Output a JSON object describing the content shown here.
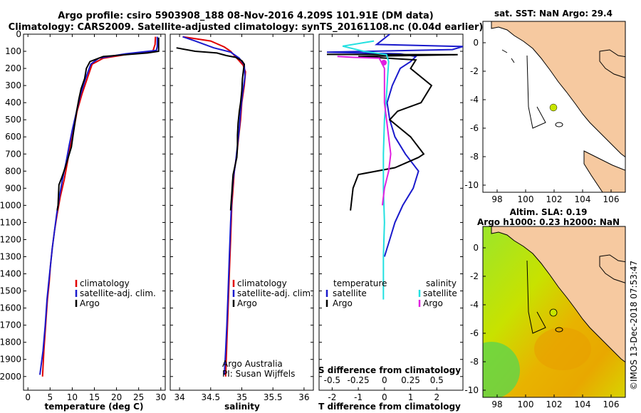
{
  "title": {
    "line1": "Argo profile: csiro 5903908_188 08-Nov-2016 4.209S 101.91E (DM data)",
    "line2": "Climatology: CARS2009. Satellite-adjusted climatology: synTS_20161108.nc (0.04d earlier)"
  },
  "colors": {
    "red": "#e00000",
    "blue": "#1a1acc",
    "black": "#000000",
    "cyan": "#22e0e0",
    "magenta": "#e020e0",
    "land": "#f6c9a0"
  },
  "chart_data": [
    {
      "type": "line",
      "name": "temperature",
      "xlabel": "temperature (deg C)",
      "ylabel": "depth",
      "xlim": [
        -1,
        31
      ],
      "ylim": [
        0,
        2080
      ],
      "xticks": [
        "0",
        "5",
        "10",
        "15",
        "20",
        "25",
        "30"
      ],
      "yticks": [
        "0",
        "100",
        "200",
        "300",
        "400",
        "500",
        "600",
        "700",
        "800",
        "900",
        "1000",
        "1100",
        "1200",
        "1300",
        "1400",
        "1500",
        "1600",
        "1700",
        "1800",
        "1900",
        "2000"
      ],
      "legend": [
        "climatology",
        "satellite-adj. clim.",
        "Argo"
      ],
      "series": [
        {
          "name": "climatology",
          "color": "red",
          "points": [
            [
              28.8,
              15
            ],
            [
              28.7,
              60
            ],
            [
              28.2,
              100
            ],
            [
              22,
              120
            ],
            [
              17,
              140
            ],
            [
              14.5,
              175
            ],
            [
              13.5,
              250
            ],
            [
              12.2,
              350
            ],
            [
              11.1,
              450
            ],
            [
              10.4,
              550
            ],
            [
              9.6,
              650
            ],
            [
              8.9,
              750
            ],
            [
              8.2,
              850
            ],
            [
              7.3,
              950
            ],
            [
              6.6,
              1050
            ],
            [
              6,
              1150
            ],
            [
              5.5,
              1250
            ],
            [
              5.1,
              1350
            ],
            [
              4.8,
              1450
            ],
            [
              4.4,
              1550
            ],
            [
              4,
              1700
            ],
            [
              3.6,
              1850
            ],
            [
              3.3,
              2000
            ]
          ]
        },
        {
          "name": "satellite-adj. clim.",
          "color": "blue",
          "points": [
            [
              29.2,
              15
            ],
            [
              29.2,
              70
            ],
            [
              29,
              95
            ],
            [
              22,
              115
            ],
            [
              16,
              140
            ],
            [
              14.2,
              175
            ],
            [
              13,
              260
            ],
            [
              11.8,
              360
            ],
            [
              11,
              450
            ],
            [
              10.1,
              550
            ],
            [
              9.3,
              650
            ],
            [
              8.6,
              750
            ],
            [
              7.8,
              850
            ],
            [
              7.1,
              950
            ],
            [
              6.5,
              1050
            ],
            [
              6,
              1150
            ],
            [
              5.5,
              1250
            ],
            [
              5.1,
              1350
            ],
            [
              4.7,
              1450
            ],
            [
              4.3,
              1550
            ],
            [
              3.9,
              1700
            ],
            [
              3.4,
              1850
            ],
            [
              2.7,
              1990
            ]
          ]
        },
        {
          "name": "Argo",
          "color": "black",
          "points": [
            [
              29.5,
              20
            ],
            [
              29.5,
              100
            ],
            [
              27,
              110
            ],
            [
              17,
              130
            ],
            [
              14,
              160
            ],
            [
              13.2,
              200
            ],
            [
              12.8,
              260
            ],
            [
              12,
              320
            ],
            [
              11.5,
              380
            ],
            [
              11,
              450
            ],
            [
              10.6,
              520
            ],
            [
              10.2,
              590
            ],
            [
              9.8,
              660
            ],
            [
              9.1,
              720
            ],
            [
              8.4,
              780
            ],
            [
              7.6,
              840
            ],
            [
              7,
              880
            ],
            [
              6.9,
              940
            ],
            [
              6.8,
              1000
            ],
            [
              6.6,
              1030
            ]
          ]
        }
      ]
    },
    {
      "type": "line",
      "name": "salinity",
      "xlabel": "salinity",
      "ylabel": "depth",
      "xlim": [
        33.85,
        36.15
      ],
      "ylim": [
        0,
        2080
      ],
      "xticks": [
        "34",
        "34.5",
        "35",
        "35.5",
        "36"
      ],
      "legend": [
        "climatology",
        "satellite-adj. clim.",
        "Argo"
      ],
      "series": [
        {
          "name": "climatology",
          "color": "red",
          "points": [
            [
              34.05,
              15
            ],
            [
              34.5,
              40
            ],
            [
              34.72,
              75
            ],
            [
              34.82,
              100
            ],
            [
              34.92,
              140
            ],
            [
              35.02,
              180
            ],
            [
              35.06,
              220
            ],
            [
              35.04,
              300
            ],
            [
              35.0,
              400
            ],
            [
              34.98,
              500
            ],
            [
              34.95,
              600
            ],
            [
              34.92,
              700
            ],
            [
              34.88,
              800
            ],
            [
              34.86,
              900
            ],
            [
              34.84,
              1000
            ],
            [
              34.82,
              1200
            ],
            [
              34.8,
              1400
            ],
            [
              34.78,
              1600
            ],
            [
              34.76,
              1800
            ],
            [
              34.74,
              2000
            ]
          ]
        },
        {
          "name": "satellite-adj. clim.",
          "color": "blue",
          "points": [
            [
              34.05,
              15
            ],
            [
              34.25,
              40
            ],
            [
              34.55,
              80
            ],
            [
              34.82,
              105
            ],
            [
              34.96,
              140
            ],
            [
              35.04,
              180
            ],
            [
              35.05,
              250
            ],
            [
              35.01,
              350
            ],
            [
              34.98,
              450
            ],
            [
              34.96,
              550
            ],
            [
              34.93,
              650
            ],
            [
              34.9,
              750
            ],
            [
              34.86,
              850
            ],
            [
              34.84,
              950
            ],
            [
              34.82,
              1100
            ],
            [
              34.8,
              1300
            ],
            [
              34.78,
              1500
            ],
            [
              34.76,
              1700
            ],
            [
              34.74,
              1850
            ],
            [
              34.72,
              1990
            ]
          ]
        },
        {
          "name": "Argo",
          "color": "black",
          "points": [
            [
              33.95,
              80
            ],
            [
              34.25,
              100
            ],
            [
              34.6,
              110
            ],
            [
              34.75,
              125
            ],
            [
              34.9,
              135
            ],
            [
              35.0,
              155
            ],
            [
              35.04,
              175
            ],
            [
              35.03,
              200
            ],
            [
              35.01,
              260
            ],
            [
              35.0,
              330
            ],
            [
              34.98,
              400
            ],
            [
              34.96,
              450
            ],
            [
              34.94,
              520
            ],
            [
              34.93,
              590
            ],
            [
              34.93,
              660
            ],
            [
              34.92,
              720
            ],
            [
              34.89,
              770
            ],
            [
              34.86,
              820
            ],
            [
              34.85,
              870
            ],
            [
              34.84,
              930
            ],
            [
              34.83,
              980
            ],
            [
              34.82,
              1030
            ]
          ]
        }
      ],
      "annotation": [
        "Argo Australia",
        "PI: Susan Wijffels"
      ]
    },
    {
      "type": "line",
      "name": "differences",
      "xlabel": "T difference from climatology",
      "xlabel_top": "S difference from climatology",
      "xlim": [
        -2.5,
        3
      ],
      "ylim": [
        0,
        2080
      ],
      "xticks": [
        "-2",
        "-1",
        "0",
        "1",
        "2"
      ],
      "xticks_s": [
        "-0.5",
        "-0.25",
        "0",
        "0.25",
        "0.5"
      ],
      "legend_left_title": "temperature",
      "legend_right_title": "salinity",
      "legend_left": [
        "satellite",
        "Argo"
      ],
      "legend_right": [
        "satellite",
        "Argo"
      ],
      "series": [
        {
          "name": "T satellite",
          "color": "blue",
          "points": [
            [
              0.2,
              0
            ],
            [
              -0.3,
              60
            ],
            [
              3.0,
              72
            ],
            [
              2.6,
              90
            ],
            [
              -2.2,
              105
            ],
            [
              0.6,
              115
            ],
            [
              1.2,
              130
            ],
            [
              1.0,
              160
            ],
            [
              0.6,
              200
            ],
            [
              0.3,
              300
            ],
            [
              0.1,
              400
            ],
            [
              0.2,
              500
            ],
            [
              0.4,
              600
            ],
            [
              0.8,
              700
            ],
            [
              1.3,
              800
            ],
            [
              1.1,
              900
            ],
            [
              0.7,
              1000
            ],
            [
              0.4,
              1100
            ],
            [
              0.2,
              1200
            ],
            [
              0.0,
              1300
            ]
          ]
        },
        {
          "name": "T Argo",
          "color": "black",
          "points": [
            [
              -2.2,
              118
            ],
            [
              2.8,
              120
            ],
            [
              -1.0,
              130
            ],
            [
              1.2,
              150
            ],
            [
              1.0,
              200
            ],
            [
              1.8,
              300
            ],
            [
              1.4,
              400
            ],
            [
              0.5,
              450
            ],
            [
              0.2,
              500
            ],
            [
              1.0,
              600
            ],
            [
              1.5,
              700
            ],
            [
              1.3,
              720
            ],
            [
              0.4,
              780
            ],
            [
              -1.0,
              820
            ],
            [
              -1.2,
              900
            ],
            [
              -1.3,
              1030
            ]
          ]
        },
        {
          "name": "S satellite",
          "color": "cyan",
          "points": [
            [
              -0.1,
              40
            ],
            [
              -0.4,
              70
            ],
            [
              -0.2,
              100
            ],
            [
              0.02,
              120
            ],
            [
              0.04,
              160
            ],
            [
              0.03,
              250
            ],
            [
              0.02,
              350
            ],
            [
              0.0,
              500
            ],
            [
              -0.01,
              700
            ],
            [
              -0.01,
              900
            ],
            [
              0.0,
              1100
            ],
            [
              -0.01,
              1300
            ],
            [
              -0.01,
              1500
            ],
            [
              -0.01,
              1550
            ]
          ]
        },
        {
          "name": "S Argo",
          "color": "magenta",
          "points": [
            [
              -0.45,
              130
            ],
            [
              -0.3,
              135
            ],
            [
              -0.05,
              140
            ],
            [
              0.0,
              200
            ],
            [
              0.0,
              400
            ],
            [
              0.03,
              550
            ],
            [
              0.06,
              700
            ],
            [
              0.04,
              800
            ],
            [
              0.0,
              900
            ],
            [
              -0.02,
              1000
            ]
          ]
        }
      ]
    }
  ],
  "maps": [
    {
      "title": "sat. SST: NaN Argo: 29.4",
      "xticks": [
        "98",
        "100",
        "102",
        "104",
        "106"
      ],
      "yticks": [
        "0",
        "-2",
        "-4",
        "-6",
        "-8",
        "-10"
      ],
      "argo_position": "4.209S 101.91E"
    },
    {
      "title_line1": "Altim. SLA: 0.19",
      "title_line2": "Argo h1000: 0.23 h2000: NaN",
      "xticks": [
        "98",
        "100",
        "102",
        "104",
        "106"
      ],
      "yticks": [
        "0",
        "-2",
        "-4",
        "-6",
        "-8",
        "-10"
      ]
    }
  ],
  "watermark": "©IMOS 13-Dec-2018 07:53:47"
}
